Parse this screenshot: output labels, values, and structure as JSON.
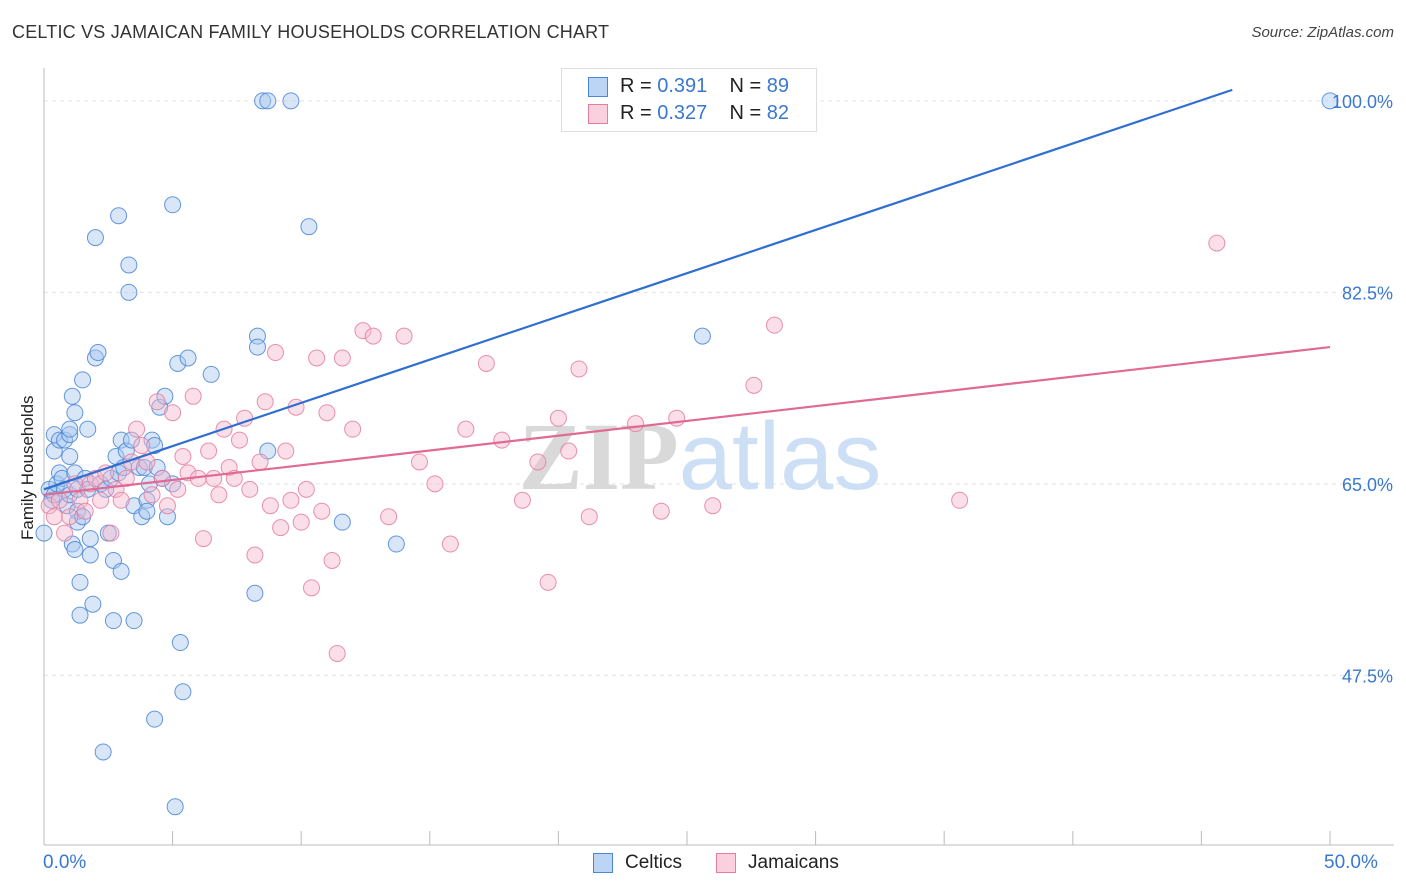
{
  "title": "CELTIC VS JAMAICAN FAMILY HOUSEHOLDS CORRELATION CHART",
  "source": "Source: ZipAtlas.com",
  "watermark": "ZIPatlas",
  "legend": {
    "celtics": {
      "r_label": "R =",
      "r_value": "0.391",
      "n_label": "N =",
      "n_value": "89"
    },
    "jamaicans": {
      "r_label": "R =",
      "r_value": "0.327",
      "n_label": "N =",
      "n_value": "82"
    }
  },
  "colors": {
    "celtics_fill": "#a8c8f0",
    "celtics_stroke": "#4a86d6",
    "celtics_line": "#2f6fd0",
    "jamaicans_fill": "#f7b9cd",
    "jamaicans_stroke": "#e47ea0",
    "jamaicans_line": "#e06a94",
    "axis_text": "#3a78d0"
  },
  "chart_data": {
    "type": "scatter",
    "title": "CELTIC VS JAMAICAN FAMILY HOUSEHOLDS CORRELATION CHART",
    "xlabel": "",
    "ylabel": "Family Households",
    "xlim": [
      0,
      50
    ],
    "ylim": [
      32,
      103
    ],
    "x_tick_labels": [
      "0.0%",
      "50.0%"
    ],
    "y_tick_labels": [
      "47.5%",
      "65.0%",
      "82.5%",
      "100.0%"
    ],
    "y_ticks": [
      47.5,
      65.0,
      82.5,
      100.0
    ],
    "grid": true,
    "legend_position": "top-center",
    "series": [
      {
        "name": "Celtics",
        "trend": {
          "x": [
            0,
            46.2
          ],
          "y": [
            64.5,
            101.0
          ]
        },
        "points": [
          [
            0.0,
            60.5
          ],
          [
            0.2,
            64.5
          ],
          [
            0.3,
            63.5
          ],
          [
            0.4,
            64.0
          ],
          [
            0.4,
            68.0
          ],
          [
            0.4,
            69.5
          ],
          [
            0.5,
            65.0
          ],
          [
            0.6,
            66.0
          ],
          [
            0.6,
            69.0
          ],
          [
            0.7,
            65.5
          ],
          [
            0.8,
            64.5
          ],
          [
            0.8,
            69.0
          ],
          [
            0.9,
            63.0
          ],
          [
            1.0,
            67.5
          ],
          [
            1.0,
            64.0
          ],
          [
            1.0,
            69.5
          ],
          [
            1.0,
            70.0
          ],
          [
            1.1,
            73.0
          ],
          [
            1.1,
            59.5
          ],
          [
            1.2,
            71.5
          ],
          [
            1.2,
            66.0
          ],
          [
            1.2,
            59.0
          ],
          [
            1.3,
            64.5
          ],
          [
            1.3,
            62.5
          ],
          [
            1.3,
            61.5
          ],
          [
            1.4,
            56.0
          ],
          [
            1.4,
            53.0
          ],
          [
            1.5,
            62.0
          ],
          [
            1.5,
            74.5
          ],
          [
            1.6,
            65.5
          ],
          [
            1.7,
            70.0
          ],
          [
            1.7,
            64.5
          ],
          [
            1.8,
            58.5
          ],
          [
            1.8,
            60.0
          ],
          [
            1.9,
            54.0
          ],
          [
            2.0,
            87.5
          ],
          [
            2.0,
            76.5
          ],
          [
            2.1,
            77.0
          ],
          [
            2.2,
            65.0
          ],
          [
            2.3,
            40.5
          ],
          [
            2.4,
            64.5
          ],
          [
            2.5,
            60.5
          ],
          [
            2.6,
            65.5
          ],
          [
            2.7,
            52.5
          ],
          [
            2.7,
            58.0
          ],
          [
            2.8,
            67.5
          ],
          [
            2.9,
            66.0
          ],
          [
            2.9,
            89.5
          ],
          [
            3.0,
            69.0
          ],
          [
            3.0,
            57.0
          ],
          [
            3.1,
            66.5
          ],
          [
            3.2,
            68.0
          ],
          [
            3.3,
            85.0
          ],
          [
            3.3,
            82.5
          ],
          [
            3.4,
            69.0
          ],
          [
            3.5,
            63.0
          ],
          [
            3.5,
            52.5
          ],
          [
            3.7,
            66.5
          ],
          [
            3.8,
            62.0
          ],
          [
            3.9,
            66.5
          ],
          [
            4.0,
            63.5
          ],
          [
            4.0,
            62.5
          ],
          [
            4.1,
            65.0
          ],
          [
            4.2,
            69.0
          ],
          [
            4.3,
            43.5
          ],
          [
            4.3,
            68.5
          ],
          [
            4.4,
            66.5
          ],
          [
            4.5,
            72.0
          ],
          [
            4.6,
            65.5
          ],
          [
            4.7,
            73.0
          ],
          [
            4.8,
            62.0
          ],
          [
            5.0,
            90.5
          ],
          [
            5.0,
            65.0
          ],
          [
            5.1,
            35.5
          ],
          [
            5.2,
            76.0
          ],
          [
            5.3,
            50.5
          ],
          [
            5.4,
            46.0
          ],
          [
            5.6,
            76.5
          ],
          [
            6.5,
            75.0
          ],
          [
            8.2,
            55.0
          ],
          [
            8.3,
            78.5
          ],
          [
            8.3,
            77.5
          ],
          [
            8.5,
            100.0
          ],
          [
            8.7,
            100.0
          ],
          [
            8.7,
            68.0
          ],
          [
            9.6,
            100.0
          ],
          [
            10.3,
            88.5
          ],
          [
            11.6,
            61.5
          ],
          [
            13.7,
            59.5
          ],
          [
            25.6,
            78.5
          ],
          [
            50.0,
            100.0
          ]
        ]
      },
      {
        "name": "Jamaicans",
        "trend": {
          "x": [
            0,
            50
          ],
          "y": [
            64.0,
            77.5
          ]
        },
        "points": [
          [
            0.2,
            63.0
          ],
          [
            0.4,
            62.0
          ],
          [
            0.6,
            63.5
          ],
          [
            0.8,
            60.5
          ],
          [
            1.0,
            62.0
          ],
          [
            1.2,
            65.0
          ],
          [
            1.4,
            63.5
          ],
          [
            1.6,
            62.5
          ],
          [
            1.8,
            65.0
          ],
          [
            2.0,
            65.5
          ],
          [
            2.2,
            63.5
          ],
          [
            2.4,
            66.0
          ],
          [
            2.6,
            60.5
          ],
          [
            2.8,
            64.5
          ],
          [
            3.0,
            63.5
          ],
          [
            3.2,
            65.5
          ],
          [
            3.4,
            67.0
          ],
          [
            3.6,
            70.0
          ],
          [
            3.8,
            68.5
          ],
          [
            4.0,
            67.0
          ],
          [
            4.2,
            64.0
          ],
          [
            4.4,
            72.5
          ],
          [
            4.6,
            65.5
          ],
          [
            4.8,
            63.0
          ],
          [
            5.0,
            71.5
          ],
          [
            5.2,
            64.5
          ],
          [
            5.4,
            67.5
          ],
          [
            5.6,
            66.0
          ],
          [
            5.8,
            73.0
          ],
          [
            6.0,
            65.5
          ],
          [
            6.2,
            60.0
          ],
          [
            6.4,
            68.0
          ],
          [
            6.6,
            65.5
          ],
          [
            6.8,
            64.0
          ],
          [
            7.0,
            70.0
          ],
          [
            7.2,
            66.5
          ],
          [
            7.4,
            65.5
          ],
          [
            7.6,
            69.0
          ],
          [
            7.8,
            71.0
          ],
          [
            8.0,
            64.5
          ],
          [
            8.2,
            58.5
          ],
          [
            8.4,
            67.0
          ],
          [
            8.6,
            72.5
          ],
          [
            8.8,
            63.0
          ],
          [
            9.0,
            77.0
          ],
          [
            9.2,
            61.0
          ],
          [
            9.4,
            68.0
          ],
          [
            9.6,
            63.5
          ],
          [
            9.8,
            72.0
          ],
          [
            10.0,
            61.5
          ],
          [
            10.2,
            64.5
          ],
          [
            10.4,
            55.5
          ],
          [
            10.6,
            76.5
          ],
          [
            10.8,
            62.5
          ],
          [
            11.0,
            71.5
          ],
          [
            11.2,
            58.0
          ],
          [
            11.4,
            49.5
          ],
          [
            11.6,
            76.5
          ],
          [
            12.0,
            70.0
          ],
          [
            12.4,
            79.0
          ],
          [
            12.8,
            78.5
          ],
          [
            13.4,
            62.0
          ],
          [
            14.0,
            78.5
          ],
          [
            14.6,
            67.0
          ],
          [
            15.2,
            65.0
          ],
          [
            15.8,
            59.5
          ],
          [
            16.4,
            70.0
          ],
          [
            17.2,
            76.0
          ],
          [
            17.8,
            69.0
          ],
          [
            18.6,
            63.5
          ],
          [
            19.2,
            67.0
          ],
          [
            19.6,
            56.0
          ],
          [
            20.0,
            71.0
          ],
          [
            20.4,
            68.0
          ],
          [
            20.8,
            75.5
          ],
          [
            21.2,
            62.0
          ],
          [
            23.0,
            70.5
          ],
          [
            24.0,
            62.5
          ],
          [
            24.6,
            71.0
          ],
          [
            26.0,
            63.0
          ],
          [
            27.6,
            74.0
          ],
          [
            28.4,
            79.5
          ],
          [
            35.6,
            63.5
          ],
          [
            45.6,
            87.0
          ]
        ]
      }
    ]
  }
}
